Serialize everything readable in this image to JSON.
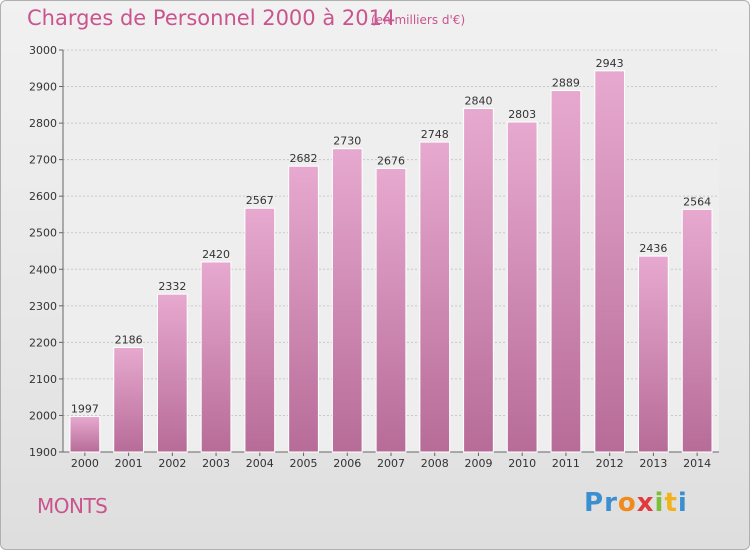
{
  "header": {
    "title": "Charges de Personnel 2000 à 2014",
    "subtitle": "(en milliers d'€)"
  },
  "footer": {
    "town": "MONTS",
    "logo_letters": [
      "P",
      "r",
      "o",
      "x",
      "i",
      "t",
      "i"
    ],
    "logo_colors": [
      "#3a8fd1",
      "#3a8fd1",
      "#f08a1c",
      "#e23b3b",
      "#7cbf3a",
      "#f2b21a",
      "#3a8fd1"
    ]
  },
  "chart_data": {
    "type": "bar",
    "title": "Charges de Personnel 2000 à 2014",
    "subtitle": "(en milliers d'€)",
    "categories": [
      "2000",
      "2001",
      "2002",
      "2003",
      "2004",
      "2005",
      "2006",
      "2007",
      "2008",
      "2009",
      "2010",
      "2011",
      "2012",
      "2013",
      "2014"
    ],
    "values": [
      1997,
      2186,
      2332,
      2420,
      2567,
      2682,
      2730,
      2676,
      2748,
      2840,
      2803,
      2889,
      2943,
      2436,
      2564
    ],
    "ylim": [
      1900,
      3000
    ],
    "yticks": [
      1900,
      2000,
      2100,
      2200,
      2300,
      2400,
      2500,
      2600,
      2700,
      2800,
      2900,
      3000
    ],
    "grid": true,
    "bar_color_top": "#e7a9cf",
    "bar_color_bottom": "#b76c98"
  }
}
